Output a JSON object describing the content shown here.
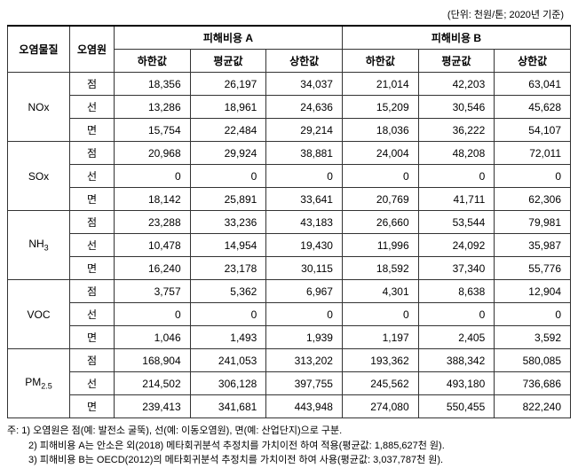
{
  "unit_label": "(단위: 천원/톤; 2020년 기준)",
  "headers": {
    "pollutant": "오염물질",
    "source": "오염원",
    "costA": "피해비용 A",
    "costB": "피해비용 B",
    "low": "하한값",
    "mean": "평균값",
    "high": "상한값"
  },
  "pollutants": [
    {
      "name": "NOx",
      "rows": [
        {
          "src": "점",
          "a": [
            "18,356",
            "26,197",
            "34,037"
          ],
          "b": [
            "21,014",
            "42,203",
            "63,041"
          ]
        },
        {
          "src": "선",
          "a": [
            "13,286",
            "18,961",
            "24,636"
          ],
          "b": [
            "15,209",
            "30,546",
            "45,628"
          ]
        },
        {
          "src": "면",
          "a": [
            "15,754",
            "22,484",
            "29,214"
          ],
          "b": [
            "18,036",
            "36,222",
            "54,107"
          ]
        }
      ]
    },
    {
      "name": "SOx",
      "rows": [
        {
          "src": "점",
          "a": [
            "20,968",
            "29,924",
            "38,881"
          ],
          "b": [
            "24,004",
            "48,208",
            "72,011"
          ]
        },
        {
          "src": "선",
          "a": [
            "0",
            "0",
            "0"
          ],
          "b": [
            "0",
            "0",
            "0"
          ]
        },
        {
          "src": "면",
          "a": [
            "18,142",
            "25,891",
            "33,641"
          ],
          "b": [
            "20,769",
            "41,711",
            "62,306"
          ]
        }
      ]
    },
    {
      "name": "NH3",
      "sub": "3",
      "rows": [
        {
          "src": "점",
          "a": [
            "23,288",
            "33,236",
            "43,183"
          ],
          "b": [
            "26,660",
            "53,544",
            "79,981"
          ]
        },
        {
          "src": "선",
          "a": [
            "10,478",
            "14,954",
            "19,430"
          ],
          "b": [
            "11,996",
            "24,092",
            "35,987"
          ]
        },
        {
          "src": "면",
          "a": [
            "16,240",
            "23,178",
            "30,115"
          ],
          "b": [
            "18,592",
            "37,340",
            "55,776"
          ]
        }
      ]
    },
    {
      "name": "VOC",
      "rows": [
        {
          "src": "점",
          "a": [
            "3,757",
            "5,362",
            "6,967"
          ],
          "b": [
            "4,301",
            "8,638",
            "12,904"
          ]
        },
        {
          "src": "선",
          "a": [
            "0",
            "0",
            "0"
          ],
          "b": [
            "0",
            "0",
            "0"
          ]
        },
        {
          "src": "면",
          "a": [
            "1,046",
            "1,493",
            "1,939"
          ],
          "b": [
            "1,197",
            "2,405",
            "3,592"
          ]
        }
      ]
    },
    {
      "name": "PM2.5",
      "sub": "2.5",
      "rows": [
        {
          "src": "점",
          "a": [
            "168,904",
            "241,053",
            "313,202"
          ],
          "b": [
            "193,362",
            "388,342",
            "580,085"
          ]
        },
        {
          "src": "선",
          "a": [
            "214,502",
            "306,128",
            "397,755"
          ],
          "b": [
            "245,562",
            "493,180",
            "736,686"
          ]
        },
        {
          "src": "면",
          "a": [
            "239,413",
            "341,681",
            "443,948"
          ],
          "b": [
            "274,080",
            "550,455",
            "822,240"
          ]
        }
      ]
    }
  ],
  "notes": {
    "prefix": "주:",
    "n1": "1) 오염원은 점(예: 발전소 굴뚝), 선(예: 이동오염원), 면(예: 산업단지)으로 구분.",
    "n2": "2) 피해비용 A는 안소은 외(2018) 메타회귀분석 추정치를 가치이전 하여 적용(평균값: 1,885,627천 원).",
    "n3": "3) 피해비용 B는 OECD(2012)의 메타회귀분석 추정치를 가치이전 하여 사용(평균값: 3,037,787천 원)."
  }
}
